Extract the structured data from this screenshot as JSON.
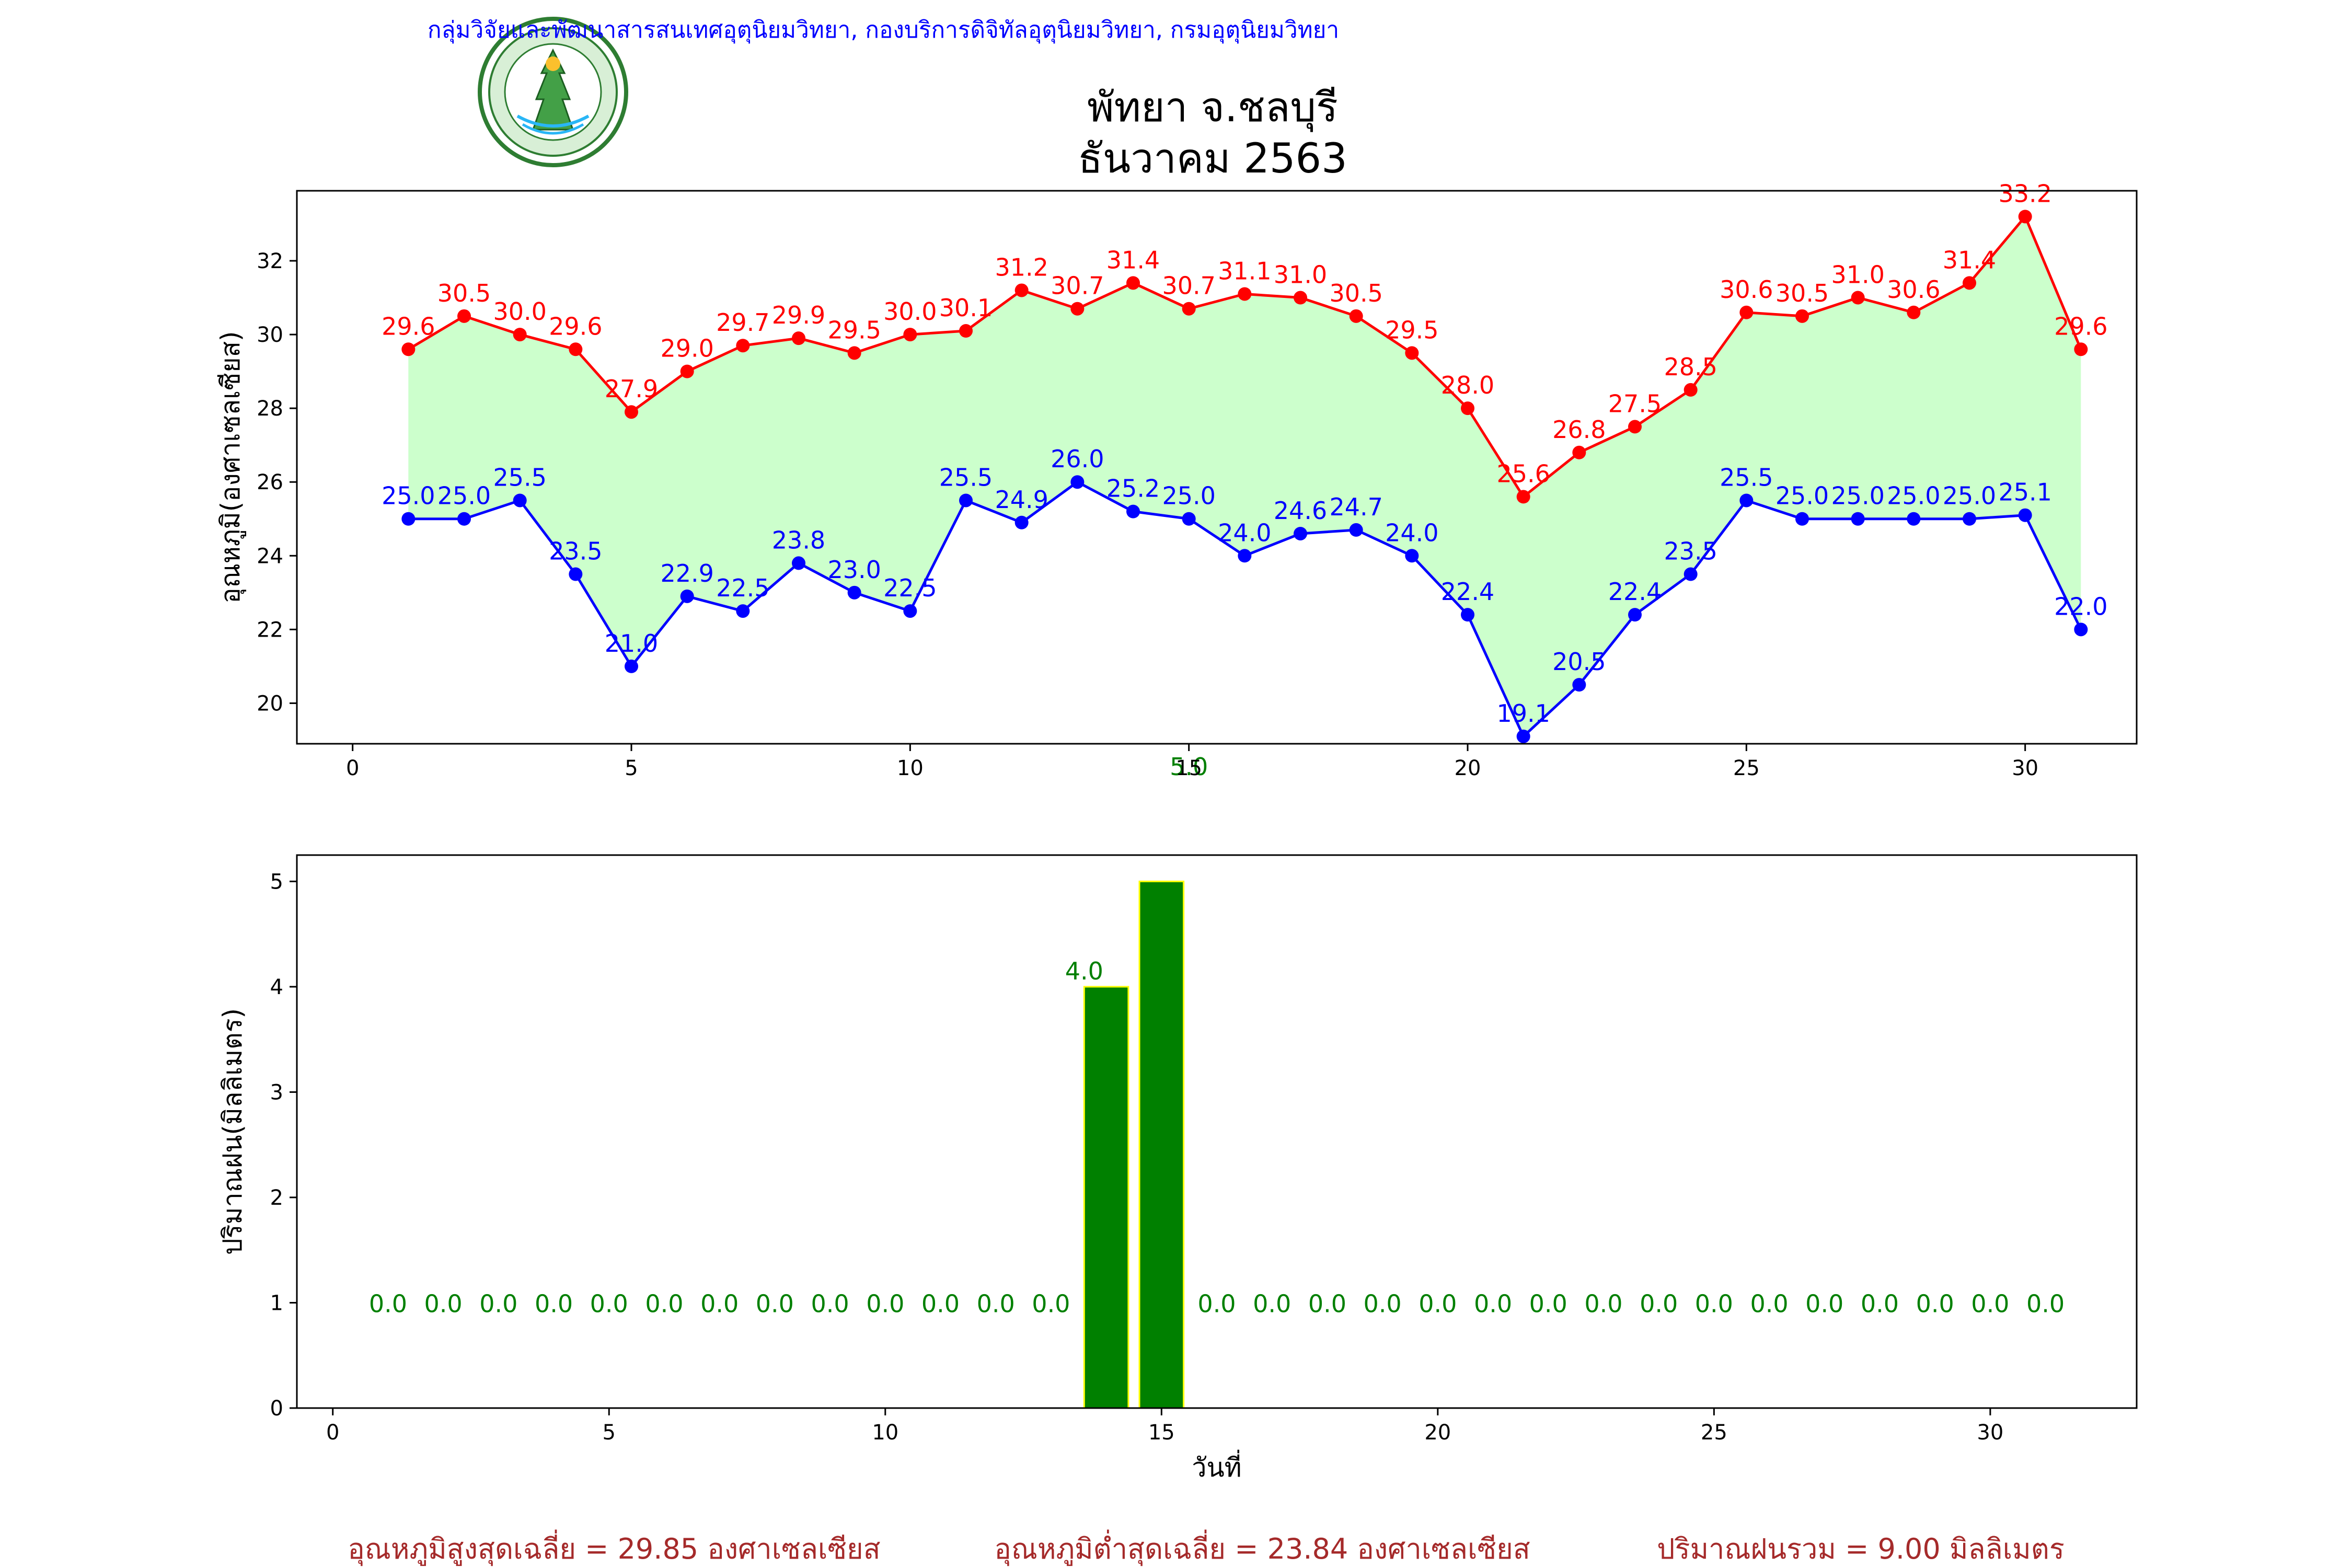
{
  "header": {
    "agency": "กลุ่มวิจัยและพัฒนาสารสนเทศอุตุนิยมวิทยา, กองบริการดิจิทัลอุตุนิยมวิทยา, กรมอุตุนิยมวิทยา",
    "logo_text": "กรมอุตุนิยมวิทยา METEOROLOGICAL DEPARTMENT",
    "title_line1": "พัทยา จ.ชลบุรี",
    "title_line2": "ธันวาคม 2563"
  },
  "colors": {
    "max_temp": "#ff0000",
    "min_temp": "#0000ff",
    "fill": "#ccffcc",
    "rain_bar": "#008000",
    "rain_edge": "#ffff00",
    "rain_label": "#008000",
    "footer_text": "#a52a2a",
    "agency_text": "#0000ff"
  },
  "chart_data": [
    {
      "type": "line",
      "ylabel": "อุณหภูมิ(องศาเซลเซียส)",
      "xlim": [
        -1,
        32
      ],
      "ylim": [
        18.9,
        33.9
      ],
      "xticks": [
        0,
        5,
        10,
        15,
        20,
        25,
        30
      ],
      "yticks": [
        20,
        22,
        24,
        26,
        28,
        30,
        32
      ],
      "x": [
        1,
        2,
        3,
        4,
        5,
        6,
        7,
        8,
        9,
        10,
        11,
        12,
        13,
        14,
        15,
        16,
        17,
        18,
        19,
        20,
        21,
        22,
        23,
        24,
        25,
        26,
        27,
        28,
        29,
        30,
        31
      ],
      "series": [
        {
          "values": [
            29.6,
            30.5,
            30.0,
            29.6,
            27.9,
            29.0,
            29.7,
            29.9,
            29.5,
            30.0,
            30.1,
            31.2,
            30.7,
            31.4,
            30.7,
            31.1,
            31.0,
            30.5,
            29.5,
            28.0,
            25.6,
            26.8,
            27.5,
            28.5,
            30.6,
            30.5,
            31.0,
            30.6,
            31.4,
            33.2,
            29.6
          ]
        },
        {
          "values": [
            25.0,
            25.0,
            25.5,
            23.5,
            21.0,
            22.9,
            22.5,
            23.8,
            23.0,
            22.5,
            25.5,
            24.9,
            26.0,
            25.2,
            25.0,
            24.0,
            24.6,
            24.7,
            24.0,
            22.4,
            19.1,
            20.5,
            22.4,
            23.5,
            25.5,
            25.0,
            25.0,
            25.0,
            25.0,
            25.1,
            22.0
          ]
        }
      ],
      "stray_label": "5.0",
      "grid": false
    },
    {
      "type": "bar",
      "ylabel": "ปริมาณฝน(มิลลิเมตร)",
      "xlabel": "วันที่",
      "xlim": [
        -0.65,
        32.65
      ],
      "ylim": [
        0,
        5.25
      ],
      "xticks": [
        0,
        5,
        10,
        15,
        20,
        25,
        30
      ],
      "yticks": [
        0,
        1,
        2,
        3,
        4,
        5
      ],
      "x": [
        1,
        2,
        3,
        4,
        5,
        6,
        7,
        8,
        9,
        10,
        11,
        12,
        13,
        14,
        15,
        16,
        17,
        18,
        19,
        20,
        21,
        22,
        23,
        24,
        25,
        26,
        27,
        28,
        29,
        30,
        31
      ],
      "values": [
        0.0,
        0.0,
        0.0,
        0.0,
        0.0,
        0.0,
        0.0,
        0.0,
        0.0,
        0.0,
        0.0,
        0.0,
        0.0,
        4.0,
        5.0,
        0.0,
        0.0,
        0.0,
        0.0,
        0.0,
        0.0,
        0.0,
        0.0,
        0.0,
        0.0,
        0.0,
        0.0,
        0.0,
        0.0,
        0.0,
        0.0
      ],
      "labels": [
        "0.0",
        "0.0",
        "0.0",
        "0.0",
        "0.0",
        "0.0",
        "0.0",
        "0.0",
        "0.0",
        "0.0",
        "0.0",
        "0.0",
        "0.0",
        "4.0",
        "",
        "0.0",
        "0.0",
        "0.0",
        "0.0",
        "0.0",
        "0.0",
        "0.0",
        "0.0",
        "0.0",
        "0.0",
        "0.0",
        "0.0",
        "0.0",
        "0.0",
        "0.0",
        "0.0"
      ],
      "grid": false
    }
  ],
  "footer": {
    "avg_max": "อุณหภูมิสูงสุดเฉลี่ย = 29.85 องศาเซลเซียส",
    "avg_min": "อุณหภูมิต่ำสุดเฉลี่ย = 23.84 องศาเซลเซียส",
    "total_rain": "ปริมาณฝนรวม = 9.00 มิลลิเมตร"
  }
}
